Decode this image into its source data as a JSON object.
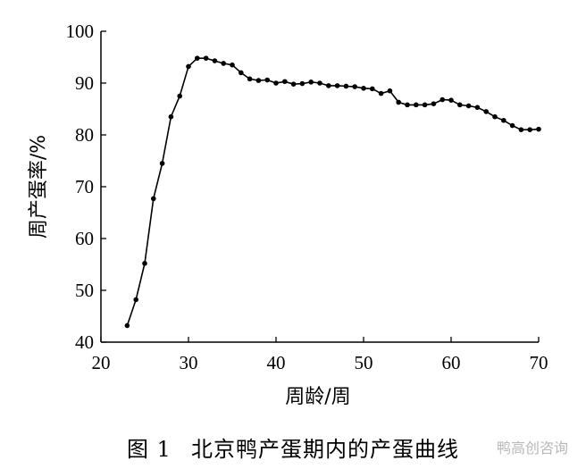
{
  "chart_data": {
    "type": "line",
    "xlabel": "周龄/周",
    "ylabel": "周产蛋率/%",
    "xlim": [
      20,
      70
    ],
    "ylim": [
      40,
      100
    ],
    "xticks": [
      20,
      30,
      40,
      50,
      60,
      70
    ],
    "yticks": [
      40,
      50,
      60,
      70,
      80,
      90,
      100
    ],
    "grid": false,
    "series": [
      {
        "x": [
          23,
          24,
          25,
          26,
          27,
          28,
          29,
          30,
          31,
          32,
          33,
          34,
          35,
          36,
          37,
          38,
          39,
          40,
          41,
          42,
          43,
          44,
          45,
          46,
          47,
          48,
          49,
          50,
          51,
          52,
          53,
          54,
          55,
          56,
          57,
          58,
          59,
          60,
          61,
          62,
          63,
          64,
          65,
          66,
          67,
          68,
          69,
          70
        ],
        "y": [
          43.2,
          48.2,
          55.2,
          67.7,
          74.5,
          83.5,
          87.5,
          93.2,
          94.8,
          94.8,
          94.3,
          93.8,
          93.5,
          92.0,
          90.8,
          90.5,
          90.6,
          90.0,
          90.3,
          89.8,
          89.9,
          90.2,
          90.0,
          89.5,
          89.5,
          89.4,
          89.3,
          89.0,
          88.9,
          88.0,
          88.5,
          86.3,
          85.8,
          85.8,
          85.8,
          86.0,
          86.8,
          86.7,
          85.8,
          85.6,
          85.3,
          84.5,
          83.5,
          82.8,
          81.8,
          81.0,
          81.0,
          81.1
        ]
      }
    ]
  },
  "caption": {
    "number": "图 1",
    "text": "北京鸭产蛋期内的产蛋曲线"
  },
  "watermark": {
    "text": "鸭高创咨询"
  },
  "colors": {
    "line": "#000000",
    "axis": "#000000"
  }
}
